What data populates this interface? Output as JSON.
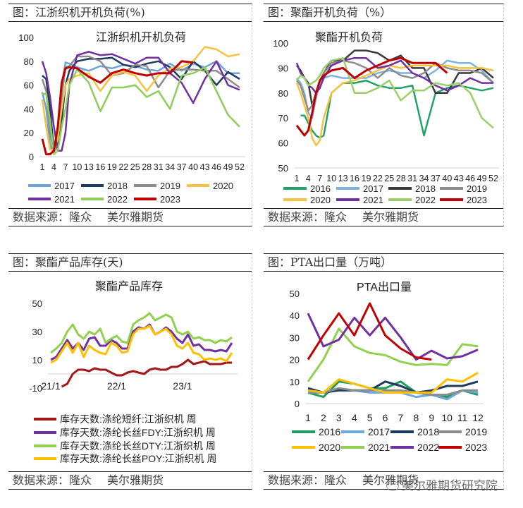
{
  "panels": [
    {
      "header": "图：江浙织机开机负荷(%)",
      "source_label": "数据来源：隆众",
      "source_org": "美尔雅期货"
    },
    {
      "header": "图：聚酯开机负荷（%）",
      "source_label": "数据来源：隆众",
      "source_org": "美尔雅期货"
    },
    {
      "header": "图：聚酯产品库存(天)",
      "source_label": "数据来源：隆众",
      "source_org": "美尔雅期货"
    },
    {
      "header": "图：PTA出口量（万吨）",
      "source_label": "数据来源：隆众",
      "source_org": "美尔雅期货"
    }
  ],
  "watermark": {
    "icon": "wechat-icon",
    "text": "美尔雅期货研究院"
  },
  "chart_data": [
    {
      "type": "line",
      "title": "江浙织机开机负荷",
      "ylim": [
        0,
        100
      ],
      "yticks": [
        "0",
        "20",
        "40",
        "60",
        "80",
        "100"
      ],
      "xticks": [
        "1",
        "4",
        "7",
        "10",
        "13",
        "16",
        "19",
        "22",
        "25",
        "28",
        "31",
        "34",
        "37",
        "40",
        "43",
        "46",
        "49",
        "52"
      ],
      "grid": false,
      "legend": "bottom",
      "x": [
        1,
        2,
        3,
        4,
        5,
        6,
        7,
        8,
        10,
        13,
        16,
        19,
        22,
        25,
        28,
        31,
        34,
        37,
        40,
        43,
        46,
        49,
        52
      ],
      "series": [
        {
          "name": "2017",
          "color": "#6fa3d6",
          "values": [
            54,
            40,
            10,
            3,
            20,
            60,
            79,
            78,
            75,
            72,
            76,
            74,
            77,
            76,
            73,
            72,
            78,
            72,
            78,
            75,
            80,
            70,
            70
          ]
        },
        {
          "name": "2018",
          "color": "#1f3a5f",
          "values": [
            68,
            65,
            40,
            5,
            10,
            30,
            60,
            72,
            80,
            82,
            82,
            83,
            77,
            75,
            78,
            80,
            75,
            65,
            80,
            72,
            60,
            71,
            65
          ]
        },
        {
          "name": "2019",
          "color": "#8c8c8c",
          "values": [
            65,
            55,
            20,
            3,
            15,
            50,
            75,
            76,
            84,
            84,
            80,
            68,
            70,
            77,
            76,
            58,
            72,
            73,
            73,
            72,
            72,
            65,
            58
          ]
        },
        {
          "name": "2020",
          "color": "#f5c242",
          "values": [
            48,
            25,
            6,
            5,
            15,
            40,
            60,
            65,
            68,
            70,
            55,
            68,
            71,
            68,
            55,
            68,
            74,
            75,
            80,
            92,
            90,
            84,
            86
          ]
        },
        {
          "name": "2021",
          "color": "#7030a0",
          "values": [
            80,
            70,
            50,
            25,
            5,
            5,
            20,
            60,
            85,
            88,
            85,
            86,
            82,
            78,
            83,
            83,
            70,
            62,
            45,
            65,
            80,
            60,
            56
          ]
        },
        {
          "name": "2022",
          "color": "#8fcc5a",
          "values": [
            52,
            53,
            30,
            2,
            5,
            25,
            40,
            60,
            73,
            62,
            38,
            58,
            58,
            60,
            50,
            55,
            40,
            68,
            70,
            75,
            55,
            35,
            25
          ]
        },
        {
          "name": "2023",
          "color": "#c00000",
          "values": [
            15,
            2,
            2,
            5,
            25,
            62,
            74,
            75,
            74,
            67,
            62,
            70,
            73,
            70,
            68,
            70,
            70,
            80,
            79,
            null,
            null,
            null,
            null
          ]
        }
      ]
    },
    {
      "type": "line",
      "title": "聚酯开机负荷",
      "ylim": [
        50,
        100
      ],
      "yticks": [
        "50",
        "60",
        "70",
        "80",
        "90",
        "100"
      ],
      "xticks": [
        "1",
        "4",
        "7",
        "10",
        "13",
        "16",
        "19",
        "22",
        "25",
        "28",
        "31",
        "34",
        "37",
        "40",
        "43",
        "46",
        "49",
        "52"
      ],
      "grid": false,
      "legend": "bottom",
      "x": [
        1,
        2,
        3,
        4,
        5,
        6,
        7,
        8,
        10,
        13,
        16,
        19,
        22,
        25,
        28,
        31,
        34,
        37,
        40,
        43,
        46,
        49,
        52
      ],
      "series": [
        {
          "name": "2016",
          "color": "#23a26a",
          "values": [
            null,
            71,
            71,
            68,
            65,
            63,
            62,
            63,
            80,
            84,
            84,
            85,
            83,
            82,
            82,
            83,
            63,
            80,
            82,
            83,
            82,
            81,
            82
          ]
        },
        {
          "name": "2017",
          "color": "#7fb2e0",
          "values": [
            86,
            84,
            80,
            72,
            70,
            78,
            84,
            86,
            87,
            86,
            86,
            86,
            88,
            89,
            88,
            88,
            86,
            89,
            93,
            92,
            92,
            89,
            84
          ]
        },
        {
          "name": "2018",
          "color": "#3a3a3a",
          "values": [
            91,
            89,
            86,
            84,
            75,
            80,
            85,
            88,
            93,
            93,
            97,
            97,
            96,
            93,
            95,
            90,
            90,
            80,
            80,
            88,
            88,
            90,
            86
          ]
        },
        {
          "name": "2019",
          "color": "#8c8c8c",
          "values": [
            85,
            83,
            78,
            73,
            75,
            79,
            85,
            88,
            92,
            93,
            92,
            90,
            86,
            90,
            87,
            86,
            88,
            92,
            90,
            89,
            89,
            88,
            84
          ]
        },
        {
          "name": "2020",
          "color": "#f5c242",
          "values": [
            84,
            80,
            75,
            70,
            62,
            59,
            61,
            70,
            80,
            84,
            85,
            87,
            89,
            91,
            90,
            91,
            91,
            91,
            91,
            90,
            90,
            90,
            89
          ]
        },
        {
          "name": "2021",
          "color": "#7030a0",
          "values": [
            92,
            88,
            86,
            83,
            82,
            80,
            82,
            86,
            91,
            93,
            94,
            94,
            90,
            91,
            93,
            88,
            86,
            83,
            81,
            83,
            86,
            84,
            84
          ]
        },
        {
          "name": "2022",
          "color": "#9ccf6a",
          "values": [
            85,
            87,
            86,
            83,
            84,
            85,
            87,
            90,
            93,
            94,
            80,
            80,
            82,
            85,
            77,
            81,
            81,
            84,
            83,
            84,
            80,
            70,
            66
          ]
        },
        {
          "name": "2023",
          "color": "#c00000",
          "values": [
            67,
            65,
            63,
            65,
            72,
            80,
            85,
            87,
            89,
            90,
            86,
            89,
            91,
            93,
            94,
            92,
            92,
            92,
            88,
            null,
            null,
            null,
            null
          ]
        }
      ]
    },
    {
      "type": "line",
      "title": "聚酯产品库存",
      "ylim": [
        -10,
        50
      ],
      "yticks": [
        "-10",
        "10",
        "30",
        "50"
      ],
      "xticks": [
        "21/1",
        "22/1",
        "23/1"
      ],
      "grid": false,
      "legend": "bottom",
      "x": [
        "21/1",
        "21/2",
        "21/3",
        "21/4",
        "21/5",
        "21/6",
        "21/7",
        "21/8",
        "21/9",
        "21/10",
        "21/11",
        "21/12",
        "22/1",
        "22/2",
        "22/3",
        "22/4",
        "22/5",
        "22/6",
        "22/7",
        "22/8",
        "22/9",
        "22/10",
        "22/11",
        "22/12",
        "23/1",
        "23/2",
        "23/3",
        "23/4",
        "23/5",
        "23/6",
        "23/7",
        "23/8",
        "23/9",
        "23/10"
      ],
      "series": [
        {
          "name": "库存天数:涤纶短纤:江浙织机 周",
          "color": "#a01818",
          "values": [
            null,
            null,
            -9,
            -7,
            0,
            3,
            3,
            2,
            4,
            3,
            3,
            1,
            -1,
            -1,
            1,
            2,
            1,
            0,
            3,
            4,
            3,
            3,
            5,
            5,
            7,
            10,
            7,
            8,
            9,
            7,
            7,
            7,
            8,
            8
          ]
        },
        {
          "name": "库存天数:涤纶长丝FDY:江浙织机 周",
          "color": "#7030a0",
          "values": [
            10,
            12,
            18,
            24,
            18,
            22,
            17,
            25,
            26,
            20,
            20,
            24,
            22,
            18,
            18,
            30,
            33,
            32,
            35,
            28,
            30,
            33,
            30,
            25,
            22,
            28,
            20,
            21,
            17,
            17,
            16,
            17,
            16,
            22
          ]
        },
        {
          "name": "库存天数:涤纶长丝DTY:江浙织机 周",
          "color": "#92d050",
          "values": [
            15,
            18,
            22,
            30,
            35,
            28,
            25,
            30,
            28,
            32,
            22,
            25,
            27,
            23,
            22,
            35,
            38,
            40,
            43,
            38,
            40,
            42,
            40,
            30,
            28,
            30,
            25,
            26,
            24,
            24,
            22,
            24,
            23,
            26
          ]
        },
        {
          "name": "库存天数:涤纶长丝POY:江浙织机 周",
          "color": "#ffc000",
          "values": [
            8,
            10,
            16,
            22,
            15,
            22,
            12,
            20,
            17,
            15,
            14,
            22,
            20,
            15,
            16,
            28,
            32,
            32,
            34,
            28,
            30,
            32,
            28,
            20,
            18,
            22,
            15,
            14,
            10,
            11,
            10,
            11,
            9,
            15
          ]
        }
      ]
    },
    {
      "type": "line",
      "title": "PTA出口量",
      "ylim": [
        0,
        50
      ],
      "yticks": [
        "0",
        "10",
        "20",
        "30",
        "40",
        "50"
      ],
      "xticks": [
        "1",
        "2",
        "3",
        "4",
        "5",
        "6",
        "7",
        "8",
        "9",
        "10",
        "11",
        "12"
      ],
      "grid": false,
      "legend": "bottom",
      "x": [
        1,
        2,
        3,
        4,
        5,
        6,
        7,
        8,
        9,
        10,
        11,
        12
      ],
      "series": [
        {
          "name": "2016",
          "color": "#1e9e5e",
          "values": [
            5,
            3,
            10,
            9,
            7,
            7,
            10,
            5,
            4,
            3,
            6,
            4
          ]
        },
        {
          "name": "2017",
          "color": "#6fa8dc",
          "values": [
            5,
            5,
            6,
            6,
            5,
            5,
            5,
            3,
            4,
            2,
            6,
            5
          ]
        },
        {
          "name": "2018",
          "color": "#1f3a5f",
          "values": [
            7,
            5,
            6,
            6,
            6,
            10,
            8,
            5,
            6,
            8,
            8,
            10
          ]
        },
        {
          "name": "2019",
          "color": "#8c8c8c",
          "values": [
            5,
            5,
            7,
            6,
            6,
            6,
            6,
            5,
            4,
            4,
            6,
            6
          ]
        },
        {
          "name": "2020",
          "color": "#ffc000",
          "values": [
            6,
            5,
            11,
            9,
            7,
            5,
            5,
            5,
            5,
            11,
            10,
            14
          ]
        },
        {
          "name": "2021",
          "color": "#92d050",
          "values": [
            10,
            20,
            34,
            26,
            23,
            22,
            19,
            17.5,
            18,
            17.5,
            27,
            26
          ]
        },
        {
          "name": "2022",
          "color": "#7030a0",
          "values": [
            41,
            26,
            29,
            39,
            31,
            39,
            30,
            20,
            24,
            20.5,
            21.5,
            24.5
          ]
        },
        {
          "name": "2023",
          "color": "#c00000",
          "values": [
            20,
            31,
            41,
            31,
            45.5,
            31,
            25,
            21,
            20,
            null,
            null,
            null
          ]
        }
      ]
    }
  ]
}
